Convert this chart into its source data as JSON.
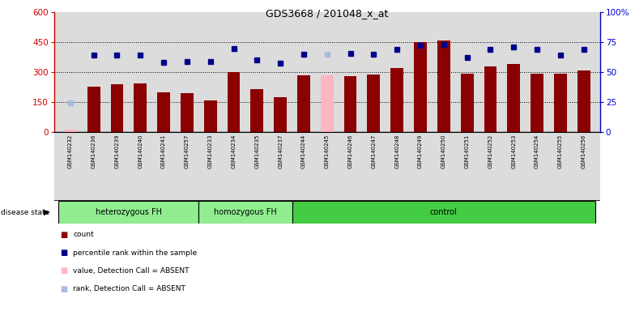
{
  "title": "GDS3668 / 201048_x_at",
  "samples": [
    "GSM140232",
    "GSM140236",
    "GSM140239",
    "GSM140240",
    "GSM140241",
    "GSM140257",
    "GSM140233",
    "GSM140234",
    "GSM140235",
    "GSM140237",
    "GSM140244",
    "GSM140245",
    "GSM140246",
    "GSM140247",
    "GSM140248",
    "GSM140249",
    "GSM140250",
    "GSM140251",
    "GSM140252",
    "GSM140253",
    "GSM140254",
    "GSM140255",
    "GSM140256"
  ],
  "values": [
    15,
    230,
    240,
    245,
    200,
    195,
    160,
    300,
    215,
    175,
    285,
    285,
    280,
    290,
    320,
    450,
    460,
    295,
    330,
    340,
    295,
    295,
    310
  ],
  "percentile": [
    145,
    385,
    385,
    385,
    350,
    355,
    355,
    420,
    360,
    345,
    390,
    390,
    395,
    390,
    415,
    435,
    440,
    375,
    415,
    425,
    415,
    385,
    415
  ],
  "detection": [
    "A",
    "P",
    "P",
    "P",
    "P",
    "P",
    "P",
    "P",
    "P",
    "P",
    "P",
    "A",
    "P",
    "P",
    "P",
    "P",
    "P",
    "P",
    "P",
    "P",
    "P",
    "P",
    "P"
  ],
  "groups": [
    {
      "name": "heterozygous FH",
      "start": 0,
      "end": 6,
      "color": "#90EE90"
    },
    {
      "name": "homozygous FH",
      "start": 6,
      "end": 10,
      "color": "#90EE90"
    },
    {
      "name": "control",
      "start": 10,
      "end": 23,
      "color": "#44CC44"
    }
  ],
  "ylim_left": [
    0,
    600
  ],
  "ylim_right": [
    0,
    100
  ],
  "yticks_left": [
    0,
    150,
    300,
    450,
    600
  ],
  "yticks_right": [
    0,
    25,
    50,
    75,
    100
  ],
  "hlines": [
    150,
    300,
    450
  ],
  "bar_color_present": "#8B0000",
  "bar_color_absent": "#FFB6C1",
  "dot_color_present": "#00008B",
  "dot_color_absent": "#AABBDD",
  "bg_color": "#DCDCDC",
  "left_axis_color": "#CC0000",
  "right_axis_color": "#0000CC",
  "legend_items": [
    {
      "color": "#8B0000",
      "label": "count"
    },
    {
      "color": "#00008B",
      "label": "percentile rank within the sample"
    },
    {
      "color": "#FFB6C1",
      "label": "value, Detection Call = ABSENT"
    },
    {
      "color": "#AABBDD",
      "label": "rank, Detection Call = ABSENT"
    }
  ]
}
